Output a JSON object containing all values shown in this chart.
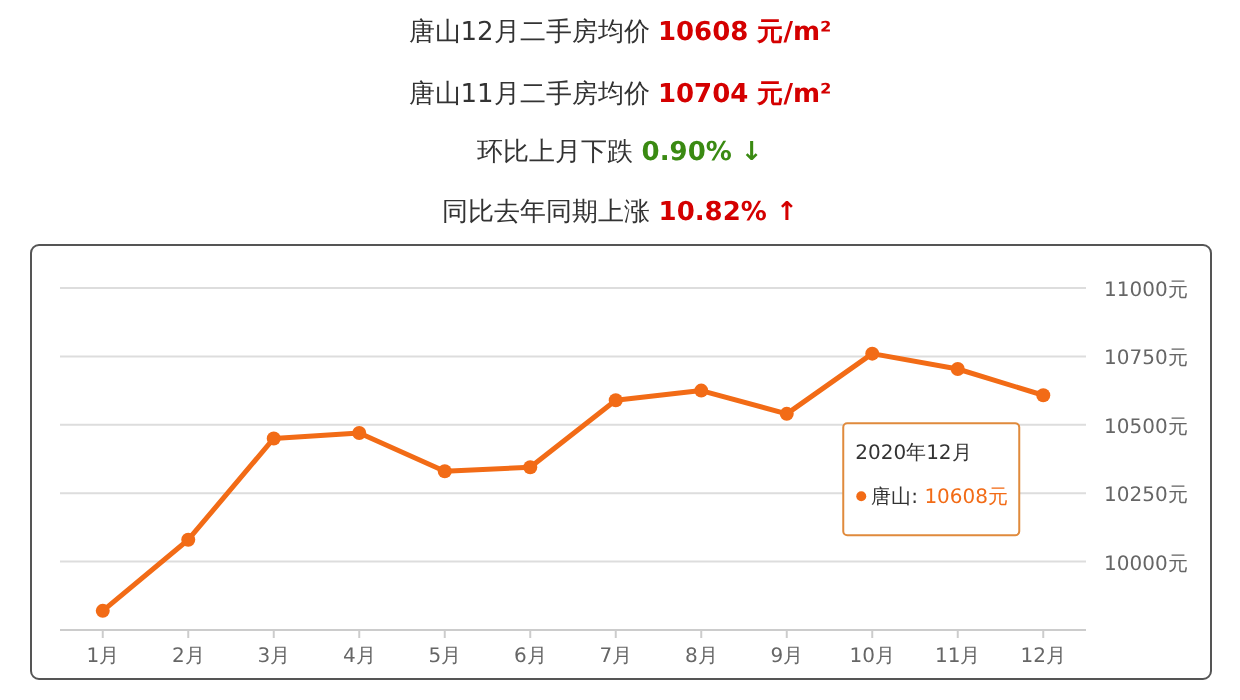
{
  "chart_data": {
    "type": "line",
    "title": "唐山12月二手房均价 10608 元/m²",
    "subtitle": "唐山11月二手房均价 10704 元/m²",
    "annotations": [
      "环比上月下跌 0.90% ↓",
      "同比去年同期上涨 10.82% ↑",
      "2020年12月",
      "唐山: 10608元"
    ],
    "categories": [
      "1月",
      "2月",
      "3月",
      "4月",
      "5月",
      "6月",
      "7月",
      "8月",
      "9月",
      "10月",
      "11月",
      "12月"
    ],
    "series": [
      {
        "color": "#f26b16",
        "values": [
          9820,
          10080,
          10450,
          10470,
          10330,
          10345,
          10590,
          10625,
          10540,
          10760,
          10704,
          10608
        ]
      }
    ],
    "ylim": [
      9750,
      11000
    ],
    "yticks": [
      {
        "value": 9750,
        "label": null
      },
      {
        "value": 10000,
        "label": "10000元"
      },
      {
        "value": 10250,
        "label": "10250元"
      },
      {
        "value": 10500,
        "label": "10500元"
      },
      {
        "value": 10750,
        "label": "10750元"
      },
      {
        "value": 11000,
        "label": "11000元"
      }
    ],
    "grid": "y",
    "marker": "circle",
    "line_style": "solid"
  }
}
